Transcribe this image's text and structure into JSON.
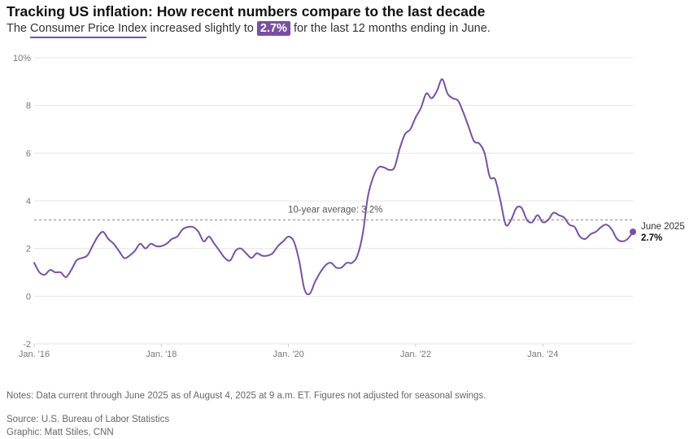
{
  "title": "Tracking US inflation: How recent numbers compare to the last decade",
  "subtitle": {
    "prefix": "The",
    "link": "Consumer Price Index",
    "middle": "increased slightly to",
    "highlight": "2.7%",
    "suffix": "for the last 12 months ending in June."
  },
  "notes": "Notes: Data current through June 2025 as of August 4, 2025 at 9 a.m. ET. Figures not adjusted for seasonal swings.",
  "source": "Source: U.S. Bureau of Labor Statistics",
  "graphic": "Graphic: Matt Stiles, CNN",
  "colors": {
    "line": "#7a4fa3",
    "grid": "#e6e6e6",
    "average": "#999999"
  },
  "chart_data": {
    "type": "line",
    "ylim": [
      -2,
      10
    ],
    "yticks": [
      10,
      8,
      6,
      4,
      2,
      0,
      -2
    ],
    "ytick_labels": [
      "10%",
      "8",
      "6",
      "4",
      "2",
      "0",
      "-2"
    ],
    "xlim": [
      "2016-01",
      "2025-06"
    ],
    "xticks": [
      {
        "x": "2016-01",
        "label": "Jan. '16"
      },
      {
        "x": "2018-01",
        "label": "Jan. '18"
      },
      {
        "x": "2020-01",
        "label": "Jan. '20"
      },
      {
        "x": "2022-01",
        "label": "Jan. '22"
      },
      {
        "x": "2024-01",
        "label": "Jan. '24"
      }
    ],
    "average": {
      "value": 3.2,
      "label": "10-year average: 3.2%"
    },
    "end_label": {
      "date": "June 2025",
      "value_label": "2.7%",
      "value": 2.7
    },
    "grid": true,
    "series": [
      {
        "points": [
          [
            "2016-01",
            1.4
          ],
          [
            "2016-02",
            1.0
          ],
          [
            "2016-03",
            0.9
          ],
          [
            "2016-04",
            1.1
          ],
          [
            "2016-05",
            1.0
          ],
          [
            "2016-06",
            1.0
          ],
          [
            "2016-07",
            0.8
          ],
          [
            "2016-08",
            1.1
          ],
          [
            "2016-09",
            1.5
          ],
          [
            "2016-10",
            1.6
          ],
          [
            "2016-11",
            1.7
          ],
          [
            "2016-12",
            2.1
          ],
          [
            "2017-01",
            2.5
          ],
          [
            "2017-02",
            2.7
          ],
          [
            "2017-03",
            2.4
          ],
          [
            "2017-04",
            2.2
          ],
          [
            "2017-05",
            1.9
          ],
          [
            "2017-06",
            1.6
          ],
          [
            "2017-07",
            1.7
          ],
          [
            "2017-08",
            1.9
          ],
          [
            "2017-09",
            2.2
          ],
          [
            "2017-10",
            2.0
          ],
          [
            "2017-11",
            2.2
          ],
          [
            "2017-12",
            2.1
          ],
          [
            "2018-01",
            2.1
          ],
          [
            "2018-02",
            2.2
          ],
          [
            "2018-03",
            2.4
          ],
          [
            "2018-04",
            2.5
          ],
          [
            "2018-05",
            2.8
          ],
          [
            "2018-06",
            2.9
          ],
          [
            "2018-07",
            2.9
          ],
          [
            "2018-08",
            2.7
          ],
          [
            "2018-09",
            2.3
          ],
          [
            "2018-10",
            2.5
          ],
          [
            "2018-11",
            2.2
          ],
          [
            "2018-12",
            1.9
          ],
          [
            "2019-01",
            1.6
          ],
          [
            "2019-02",
            1.5
          ],
          [
            "2019-03",
            1.9
          ],
          [
            "2019-04",
            2.0
          ],
          [
            "2019-05",
            1.8
          ],
          [
            "2019-06",
            1.6
          ],
          [
            "2019-07",
            1.8
          ],
          [
            "2019-08",
            1.7
          ],
          [
            "2019-09",
            1.7
          ],
          [
            "2019-10",
            1.8
          ],
          [
            "2019-11",
            2.1
          ],
          [
            "2019-12",
            2.3
          ],
          [
            "2020-01",
            2.5
          ],
          [
            "2020-02",
            2.3
          ],
          [
            "2020-03",
            1.5
          ],
          [
            "2020-04",
            0.3
          ],
          [
            "2020-05",
            0.1
          ],
          [
            "2020-06",
            0.6
          ],
          [
            "2020-07",
            1.0
          ],
          [
            "2020-08",
            1.3
          ],
          [
            "2020-09",
            1.4
          ],
          [
            "2020-10",
            1.2
          ],
          [
            "2020-11",
            1.2
          ],
          [
            "2020-12",
            1.4
          ],
          [
            "2021-01",
            1.4
          ],
          [
            "2021-02",
            1.7
          ],
          [
            "2021-03",
            2.6
          ],
          [
            "2021-04",
            4.2
          ],
          [
            "2021-05",
            5.0
          ],
          [
            "2021-06",
            5.4
          ],
          [
            "2021-07",
            5.4
          ],
          [
            "2021-08",
            5.3
          ],
          [
            "2021-09",
            5.4
          ],
          [
            "2021-10",
            6.2
          ],
          [
            "2021-11",
            6.8
          ],
          [
            "2021-12",
            7.0
          ],
          [
            "2022-01",
            7.5
          ],
          [
            "2022-02",
            7.9
          ],
          [
            "2022-03",
            8.5
          ],
          [
            "2022-04",
            8.3
          ],
          [
            "2022-05",
            8.6
          ],
          [
            "2022-06",
            9.1
          ],
          [
            "2022-07",
            8.5
          ],
          [
            "2022-08",
            8.3
          ],
          [
            "2022-09",
            8.2
          ],
          [
            "2022-10",
            7.7
          ],
          [
            "2022-11",
            7.1
          ],
          [
            "2022-12",
            6.5
          ],
          [
            "2023-01",
            6.4
          ],
          [
            "2023-02",
            6.0
          ],
          [
            "2023-03",
            5.0
          ],
          [
            "2023-04",
            4.9
          ],
          [
            "2023-05",
            4.0
          ],
          [
            "2023-06",
            3.0
          ],
          [
            "2023-07",
            3.2
          ],
          [
            "2023-08",
            3.7
          ],
          [
            "2023-09",
            3.7
          ],
          [
            "2023-10",
            3.2
          ],
          [
            "2023-11",
            3.1
          ],
          [
            "2023-12",
            3.4
          ],
          [
            "2024-01",
            3.1
          ],
          [
            "2024-02",
            3.2
          ],
          [
            "2024-03",
            3.5
          ],
          [
            "2024-04",
            3.4
          ],
          [
            "2024-05",
            3.3
          ],
          [
            "2024-06",
            3.0
          ],
          [
            "2024-07",
            2.9
          ],
          [
            "2024-08",
            2.5
          ],
          [
            "2024-09",
            2.4
          ],
          [
            "2024-10",
            2.6
          ],
          [
            "2024-11",
            2.7
          ],
          [
            "2024-12",
            2.9
          ],
          [
            "2025-01",
            3.0
          ],
          [
            "2025-02",
            2.8
          ],
          [
            "2025-03",
            2.4
          ],
          [
            "2025-04",
            2.3
          ],
          [
            "2025-05",
            2.4
          ],
          [
            "2025-06",
            2.7
          ]
        ]
      }
    ]
  }
}
